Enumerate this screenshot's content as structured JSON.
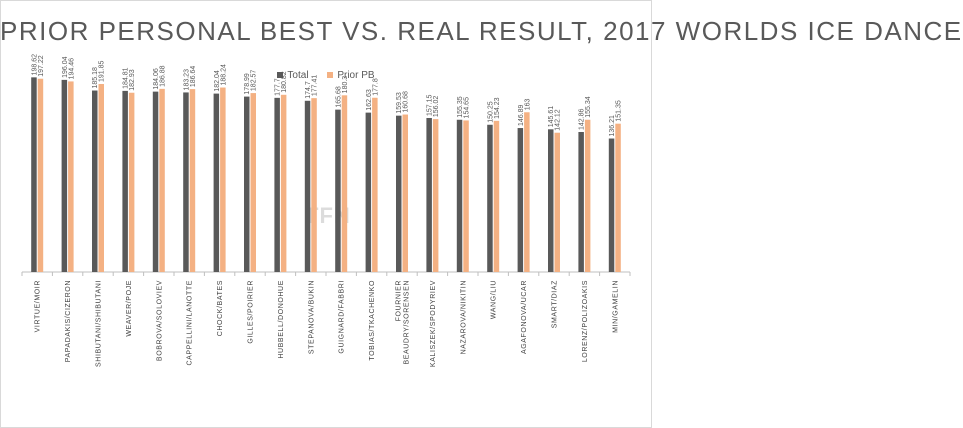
{
  "chart_data": {
    "type": "bar",
    "title": "PRIOR PERSONAL BEST VS. REAL RESULT, 2017 WORLDS ICE DANCE",
    "watermark": "TFN",
    "legend_position": "top",
    "grid": false,
    "ylim": [
      0,
      200
    ],
    "series_colors": [
      "#595959",
      "#f4b183"
    ],
    "categories": [
      "VIRTUE/MOIR",
      "PAPADAKIS/CIZERON",
      "SHIBUTANI/SHIBUTANI",
      "WEAVER/POJE",
      "BOBROVA/SOLOVIEV",
      "CAPPELLINI/LANOTTE",
      "CHOCK/BATES",
      "GILLES/POIRIER",
      "HUBBELL/DONOHUE",
      "STEPANOVA/BUKIN",
      "GUIGNARD/FABBRI",
      "TOBIAS/TKACHENKO",
      "FOURNIER BEAUDRY/SORENSEN",
      "KALISZEK/SPODYRIEV",
      "NAZAROVA/NIKITIN",
      "WANG/LIU",
      "AGAFONOVA/UCAR",
      "SMART/DIAZ",
      "LORENZ/POLIZOAKIS",
      "MIN/GAMELIN"
    ],
    "series": [
      {
        "name": "Total",
        "values": [
          198.62,
          196.04,
          185.18,
          184.81,
          184.06,
          183.23,
          182.04,
          178.99,
          177.7,
          174.7,
          165.68,
          162.63,
          159.53,
          157.15,
          155.35,
          150.25,
          146.89,
          145.61,
          142.86,
          136.21
        ],
        "labels": [
          "198.62",
          "196.04",
          "185.18",
          "184.81",
          "184.06",
          "183.23",
          "182.04",
          "178.99",
          "177.7",
          "174.7",
          "165.68",
          "162.63",
          "159.53",
          "157.15",
          "155.35",
          "150.25",
          "146.89",
          "145.61",
          "142.86",
          "136.21"
        ]
      },
      {
        "name": "Prior PB",
        "values": [
          197.22,
          194.46,
          191.85,
          182.93,
          186.88,
          186.64,
          188.24,
          182.57,
          180.82,
          177.41,
          180.3,
          177.8,
          160.68,
          156.02,
          154.65,
          154.23,
          163,
          142.12,
          155.34,
          151.35
        ],
        "labels": [
          "197.22",
          "194.46",
          "191.85",
          "182.93",
          "186.88",
          "186.64",
          "188.24",
          "182.57",
          "180.82",
          "177.41",
          "180.3",
          "177.8",
          "160.68",
          "156.02",
          "154.65",
          "154.23",
          "163",
          "142.12",
          "155.34",
          "151.35"
        ]
      }
    ]
  }
}
